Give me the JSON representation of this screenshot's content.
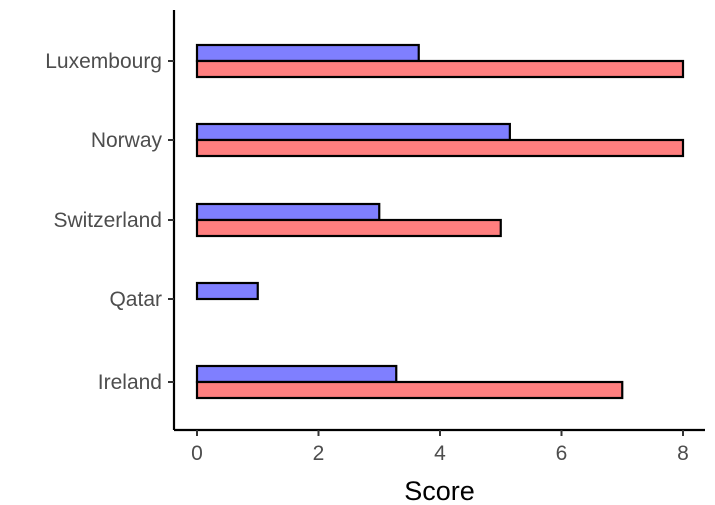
{
  "chart_data": {
    "type": "bar",
    "orientation": "horizontal",
    "categories": [
      "Luxembourg",
      "Norway",
      "Switzerland",
      "Qatar",
      "Ireland"
    ],
    "series": [
      {
        "color": "#7f7fff",
        "values": [
          3.65,
          5.15,
          3.0,
          1.0,
          3.28
        ]
      },
      {
        "color": "#ff7f7f",
        "values": [
          8.0,
          8.0,
          5.0,
          0.0,
          7.0
        ]
      }
    ],
    "xlabel": "Score",
    "ylabel": "",
    "xlim": [
      -0.4,
      8.4
    ],
    "xticks": [
      0,
      2,
      4,
      6,
      8
    ],
    "xtick_labels": [
      "0",
      "2",
      "4",
      "6",
      "8"
    ],
    "grid": false,
    "legend": "none"
  }
}
